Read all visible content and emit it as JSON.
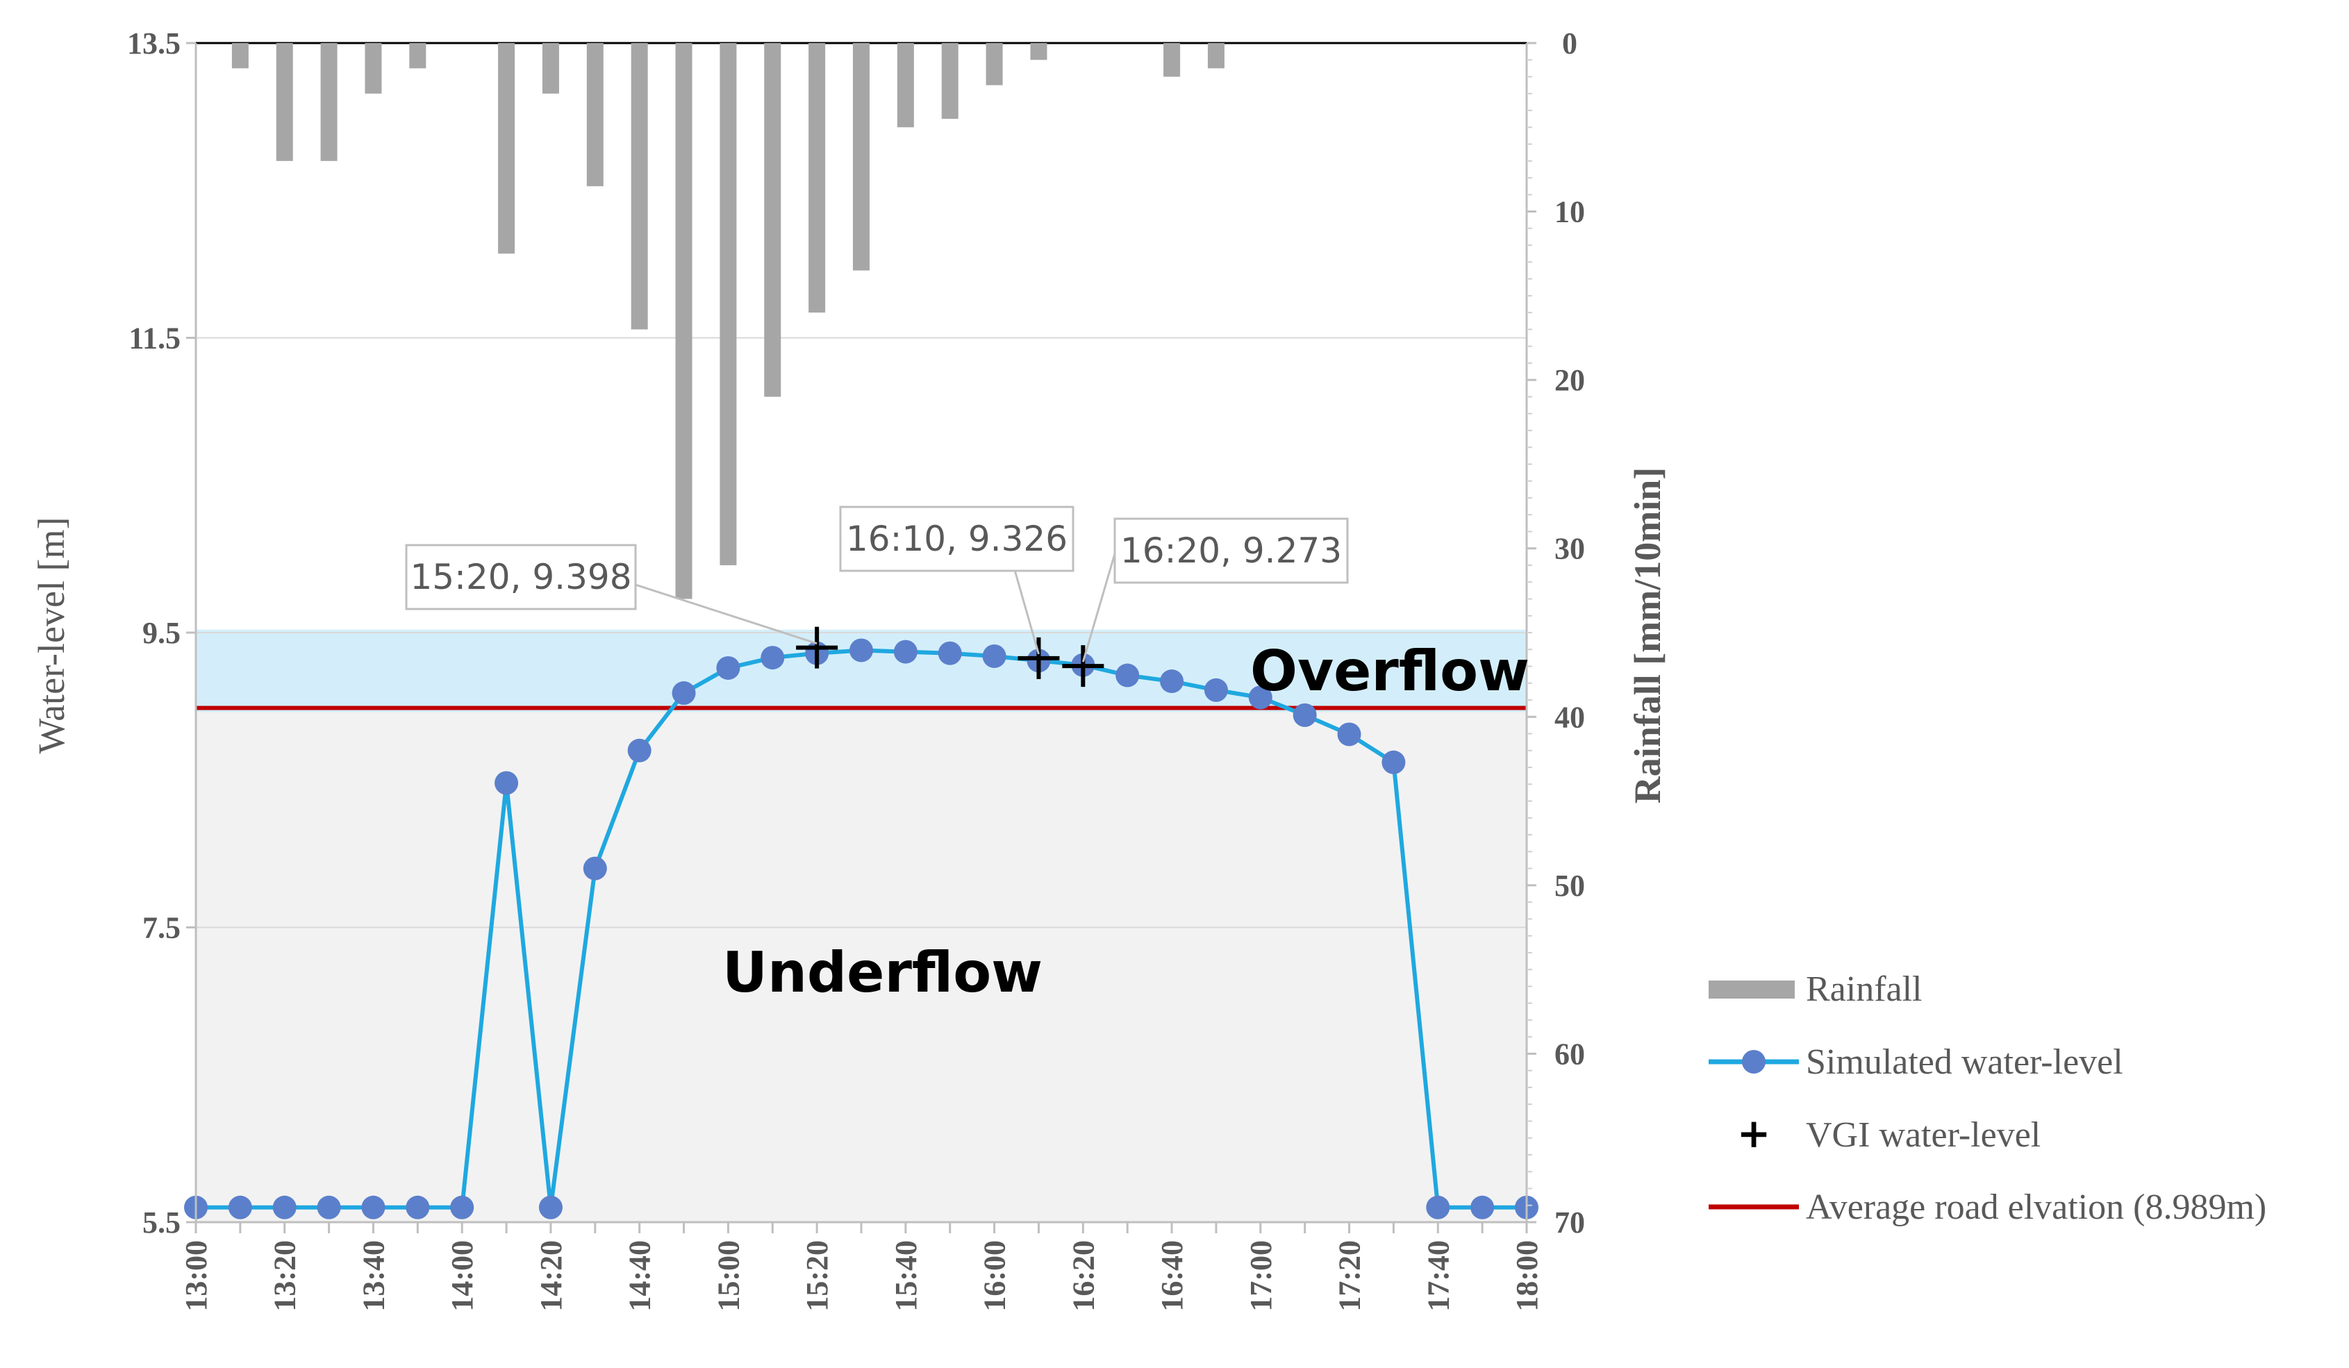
{
  "chart_data": {
    "type": "bar+line",
    "x_labels": [
      "13:00",
      "13:10",
      "13:20",
      "13:30",
      "13:40",
      "13:50",
      "14:00",
      "14:10",
      "14:20",
      "14:30",
      "14:40",
      "14:50",
      "15:00",
      "15:10",
      "15:20",
      "15:30",
      "15:40",
      "15:50",
      "16:00",
      "16:10",
      "16:20",
      "16:30",
      "16:40",
      "16:50",
      "17:00",
      "17:10",
      "17:20",
      "17:30",
      "17:40",
      "17:50",
      "18:00"
    ],
    "x_tick_labels": [
      "13:00",
      "13:20",
      "13:40",
      "14:00",
      "14:20",
      "14:40",
      "15:00",
      "15:20",
      "15:40",
      "16:00",
      "16:20",
      "16:40",
      "17:00",
      "17:20",
      "17:40",
      "18:00"
    ],
    "rainfall": [
      0,
      1.5,
      7,
      7,
      3,
      1.5,
      0,
      12.5,
      3,
      8.5,
      17,
      33,
      31,
      21,
      16,
      13.5,
      5,
      4.5,
      2.5,
      1,
      0,
      0,
      2,
      1.5,
      0,
      0,
      0,
      0,
      0,
      0,
      0
    ],
    "simulated": [
      5.6,
      5.6,
      5.6,
      5.6,
      5.6,
      5.6,
      5.6,
      8.48,
      5.6,
      7.9,
      8.7,
      9.09,
      9.26,
      9.33,
      9.36,
      9.38,
      9.37,
      9.36,
      9.34,
      9.31,
      9.28,
      9.21,
      9.17,
      9.11,
      9.06,
      8.94,
      8.81,
      8.62,
      5.6,
      5.6,
      5.6
    ],
    "vgi": [
      {
        "time": "15:20",
        "value": 9.398,
        "label": "15:20, 9.398"
      },
      {
        "time": "16:10",
        "value": 9.326,
        "label": "16:10, 9.326"
      },
      {
        "time": "16:20",
        "value": 9.273,
        "label": "16:20, 9.273"
      }
    ],
    "road_elevation": 8.989,
    "overflow_band": [
      8.96,
      9.52
    ],
    "y_left": {
      "title": "Water-level [m]",
      "min": 5.5,
      "max": 13.5,
      "ticks": [
        "13.5",
        "11.5",
        "9.5",
        "7.5",
        "5.5"
      ],
      "tick_values": [
        13.5,
        11.5,
        9.5,
        7.5,
        5.5
      ]
    },
    "y_right": {
      "title": "Rainfall [mm/10min]",
      "min": 0,
      "max": 70,
      "ticks": [
        "0",
        "10",
        "20",
        "30",
        "40",
        "50",
        "60",
        "70"
      ],
      "tick_values": [
        0,
        10,
        20,
        30,
        40,
        50,
        60,
        70
      ]
    },
    "region_labels": {
      "overflow": "Overflow",
      "underflow": "Underflow"
    },
    "legend": [
      {
        "key": "rainfall",
        "label": "Rainfall"
      },
      {
        "key": "simulated",
        "label": "Simulated water-level"
      },
      {
        "key": "vgi",
        "label": "VGI water-level",
        "symbol": "+"
      },
      {
        "key": "road",
        "label": "Average road elvation (8.989m)"
      }
    ],
    "colors": {
      "rainfall": "#a6a6a6",
      "line": "#1fa8e0",
      "marker": "#5b7fcb",
      "road": "#c00000",
      "overflow": "#d3eefa",
      "underflow": "#f2f2f2",
      "grid": "#d9d9d9",
      "vgi": "#000000"
    }
  }
}
